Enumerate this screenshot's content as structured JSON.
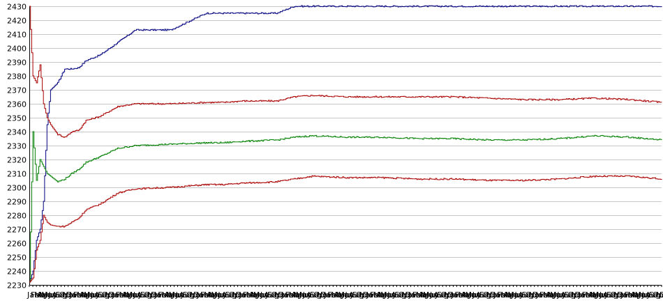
{
  "chart_data": {
    "type": "line",
    "title": "",
    "xlabel": "",
    "ylabel": "",
    "ylim": [
      2230,
      2430
    ],
    "yticks": [
      2230,
      2240,
      2250,
      2260,
      2270,
      2280,
      2290,
      2300,
      2310,
      2320,
      2330,
      2340,
      2350,
      2360,
      2370,
      2380,
      2390,
      2400,
      2410,
      2420,
      2430
    ],
    "grid": "horizontal",
    "legend": "none",
    "x_tick_labels": [
      "Jan",
      "Feb",
      "Mar",
      "Apr",
      "May",
      "Jun",
      "Jul",
      "Aug",
      "Sep",
      "Oct",
      "Nov",
      "Dec"
    ],
    "x_tick_count": 180,
    "x": [
      0,
      1,
      2,
      3,
      4,
      5,
      6,
      8,
      10,
      12,
      14,
      16,
      20,
      25,
      30,
      40,
      50,
      55,
      60,
      70,
      75,
      80,
      90,
      95,
      100,
      110,
      120,
      130,
      140,
      150,
      160,
      170,
      179
    ],
    "series": [
      {
        "color": "#000080",
        "values": [
          2232,
          2240,
          2262,
          2270,
          2290,
          2345,
          2370,
          2375,
          2385,
          2385,
          2386,
          2391,
          2395,
          2404,
          2413,
          2413,
          2425,
          2425,
          2425,
          2425,
          2430,
          2430,
          2430,
          2430,
          2430,
          2430,
          2430,
          2430,
          2430,
          2430,
          2430,
          2430,
          2430
        ]
      },
      {
        "color": "#aa0000",
        "values": [
          2430,
          2380,
          2375,
          2388,
          2360,
          2350,
          2345,
          2338,
          2336,
          2340,
          2341,
          2348,
          2351,
          2358,
          2360,
          2360,
          2361,
          2361,
          2362,
          2362,
          2365,
          2366,
          2365,
          2365,
          2365,
          2365,
          2365,
          2364,
          2363,
          2363,
          2364,
          2363,
          2361
        ]
      },
      {
        "color": "#008000",
        "values": [
          2232,
          2340,
          2305,
          2320,
          2315,
          2310,
          2308,
          2304,
          2306,
          2310,
          2313,
          2318,
          2322,
          2328,
          2330,
          2331,
          2332,
          2332,
          2333,
          2334,
          2336,
          2337,
          2336,
          2336,
          2336,
          2335,
          2335,
          2334,
          2334,
          2335,
          2337,
          2336,
          2334
        ]
      },
      {
        "color": "#aa0000",
        "values": [
          2232,
          2235,
          2255,
          2262,
          2280,
          2275,
          2273,
          2272,
          2272,
          2275,
          2278,
          2284,
          2288,
          2296,
          2299,
          2300,
          2302,
          2302,
          2303,
          2304,
          2306,
          2308,
          2307,
          2307,
          2307,
          2306,
          2306,
          2305,
          2305,
          2306,
          2308,
          2308,
          2306
        ]
      }
    ]
  }
}
